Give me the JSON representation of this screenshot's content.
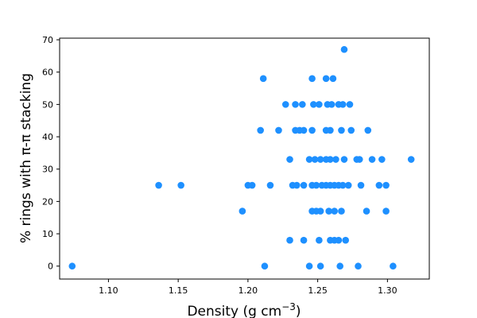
{
  "chart_data": {
    "type": "scatter",
    "title": "",
    "xlabel": "Density (g cm",
    "xlabel_superscript": "−3",
    "xlabel_suffix": ")",
    "ylabel": "% rings with π-π stacking",
    "xlim": [
      1.065,
      1.33
    ],
    "ylim": [
      -4,
      70.5
    ],
    "xticks": [
      1.1,
      1.15,
      1.2,
      1.25,
      1.3
    ],
    "xtick_labels": [
      "1.10",
      "1.15",
      "1.20",
      "1.25",
      "1.30"
    ],
    "yticks": [
      0,
      10,
      20,
      30,
      40,
      50,
      60,
      70
    ],
    "ytick_labels": [
      "0",
      "10",
      "20",
      "30",
      "40",
      "50",
      "60",
      "70"
    ],
    "grid": false,
    "marker_color": "#1e90ff",
    "x": [
      1.074,
      1.212,
      1.244,
      1.252,
      1.266,
      1.279,
      1.304,
      1.23,
      1.24,
      1.251,
      1.259,
      1.262,
      1.265,
      1.27,
      1.196,
      1.246,
      1.249,
      1.252,
      1.258,
      1.262,
      1.267,
      1.285,
      1.299,
      1.136,
      1.152,
      1.2,
      1.203,
      1.216,
      1.232,
      1.235,
      1.24,
      1.246,
      1.249,
      1.253,
      1.256,
      1.259,
      1.262,
      1.265,
      1.268,
      1.272,
      1.281,
      1.294,
      1.299,
      1.23,
      1.244,
      1.248,
      1.252,
      1.256,
      1.259,
      1.263,
      1.269,
      1.278,
      1.28,
      1.289,
      1.296,
      1.317,
      1.209,
      1.222,
      1.234,
      1.237,
      1.24,
      1.246,
      1.256,
      1.259,
      1.267,
      1.274,
      1.286,
      1.227,
      1.234,
      1.239,
      1.247,
      1.251,
      1.257,
      1.26,
      1.265,
      1.268,
      1.273,
      1.211,
      1.246,
      1.256,
      1.261,
      1.269
    ],
    "y": [
      0,
      0,
      0,
      0,
      0,
      0,
      0,
      8,
      8,
      8,
      8,
      8,
      8,
      8,
      17,
      17,
      17,
      17,
      17,
      17,
      17,
      17,
      17,
      25,
      25,
      25,
      25,
      25,
      25,
      25,
      25,
      25,
      25,
      25,
      25,
      25,
      25,
      25,
      25,
      25,
      25,
      25,
      25,
      33,
      33,
      33,
      33,
      33,
      33,
      33,
      33,
      33,
      33,
      33,
      33,
      33,
      42,
      42,
      42,
      42,
      42,
      42,
      42,
      42,
      42,
      42,
      42,
      50,
      50,
      50,
      50,
      50,
      50,
      50,
      50,
      50,
      50,
      58,
      58,
      58,
      58,
      67
    ]
  }
}
